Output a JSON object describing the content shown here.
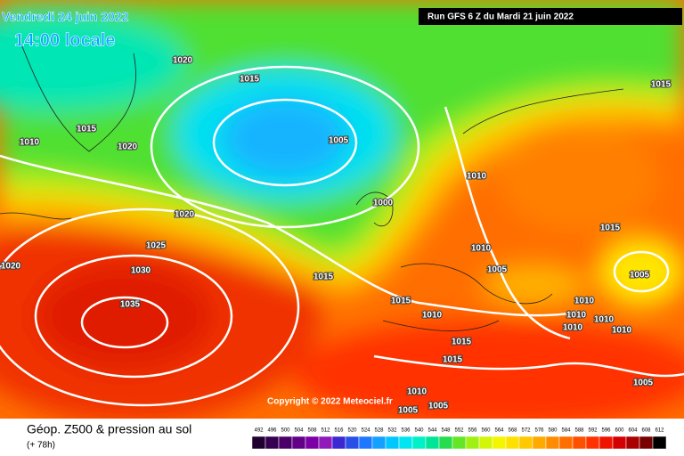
{
  "header": {
    "date": "Vendredi 24 juin 2022",
    "time": "14:00 locale",
    "run": "Run GFS 6 Z du Mardi 21 juin 2022"
  },
  "copyright": "Copyright © 2022 Meteociel.fr",
  "legend": {
    "title": "Géop. Z500 & pression au sol",
    "lead": "(+ 78h)",
    "scale": [
      {
        "value": 492,
        "color": "#1f0030"
      },
      {
        "value": 496,
        "color": "#34004f"
      },
      {
        "value": 500,
        "color": "#4b0069"
      },
      {
        "value": 504,
        "color": "#620087"
      },
      {
        "value": 508,
        "color": "#7b00a6"
      },
      {
        "value": 512,
        "color": "#8f1ab9"
      },
      {
        "value": 516,
        "color": "#3c28d2"
      },
      {
        "value": 520,
        "color": "#2850e6"
      },
      {
        "value": 524,
        "color": "#1e78ff"
      },
      {
        "value": 528,
        "color": "#14a0ff"
      },
      {
        "value": 532,
        "color": "#00c8ff"
      },
      {
        "value": 536,
        "color": "#00e6f0"
      },
      {
        "value": 540,
        "color": "#00f0c8"
      },
      {
        "value": 544,
        "color": "#00e696"
      },
      {
        "value": 548,
        "color": "#28dc50"
      },
      {
        "value": 552,
        "color": "#64e628"
      },
      {
        "value": 556,
        "color": "#a0f014"
      },
      {
        "value": 560,
        "color": "#d2f50a"
      },
      {
        "value": 564,
        "color": "#f5f500"
      },
      {
        "value": 568,
        "color": "#ffe100"
      },
      {
        "value": 572,
        "color": "#ffc800"
      },
      {
        "value": 576,
        "color": "#ffaa00"
      },
      {
        "value": 580,
        "color": "#ff8c00"
      },
      {
        "value": 584,
        "color": "#ff6e00"
      },
      {
        "value": 588,
        "color": "#ff5000"
      },
      {
        "value": 592,
        "color": "#ff3200"
      },
      {
        "value": 596,
        "color": "#f01400"
      },
      {
        "value": 600,
        "color": "#d20000"
      },
      {
        "value": 604,
        "color": "#aa0000"
      },
      {
        "value": 608,
        "color": "#780000"
      },
      {
        "value": 612,
        "color": "#000000"
      }
    ]
  },
  "isobar_labels": [
    1020,
    1015,
    1010,
    1015,
    1020,
    1005,
    1000,
    1020,
    1025,
    1020,
    1030,
    1035,
    1015,
    1015,
    1010,
    1015,
    1015,
    1010,
    1010,
    1005,
    1015,
    1005,
    1010,
    1010,
    1010,
    1010,
    1010,
    1005,
    1015,
    1010,
    1005,
    1005
  ]
}
